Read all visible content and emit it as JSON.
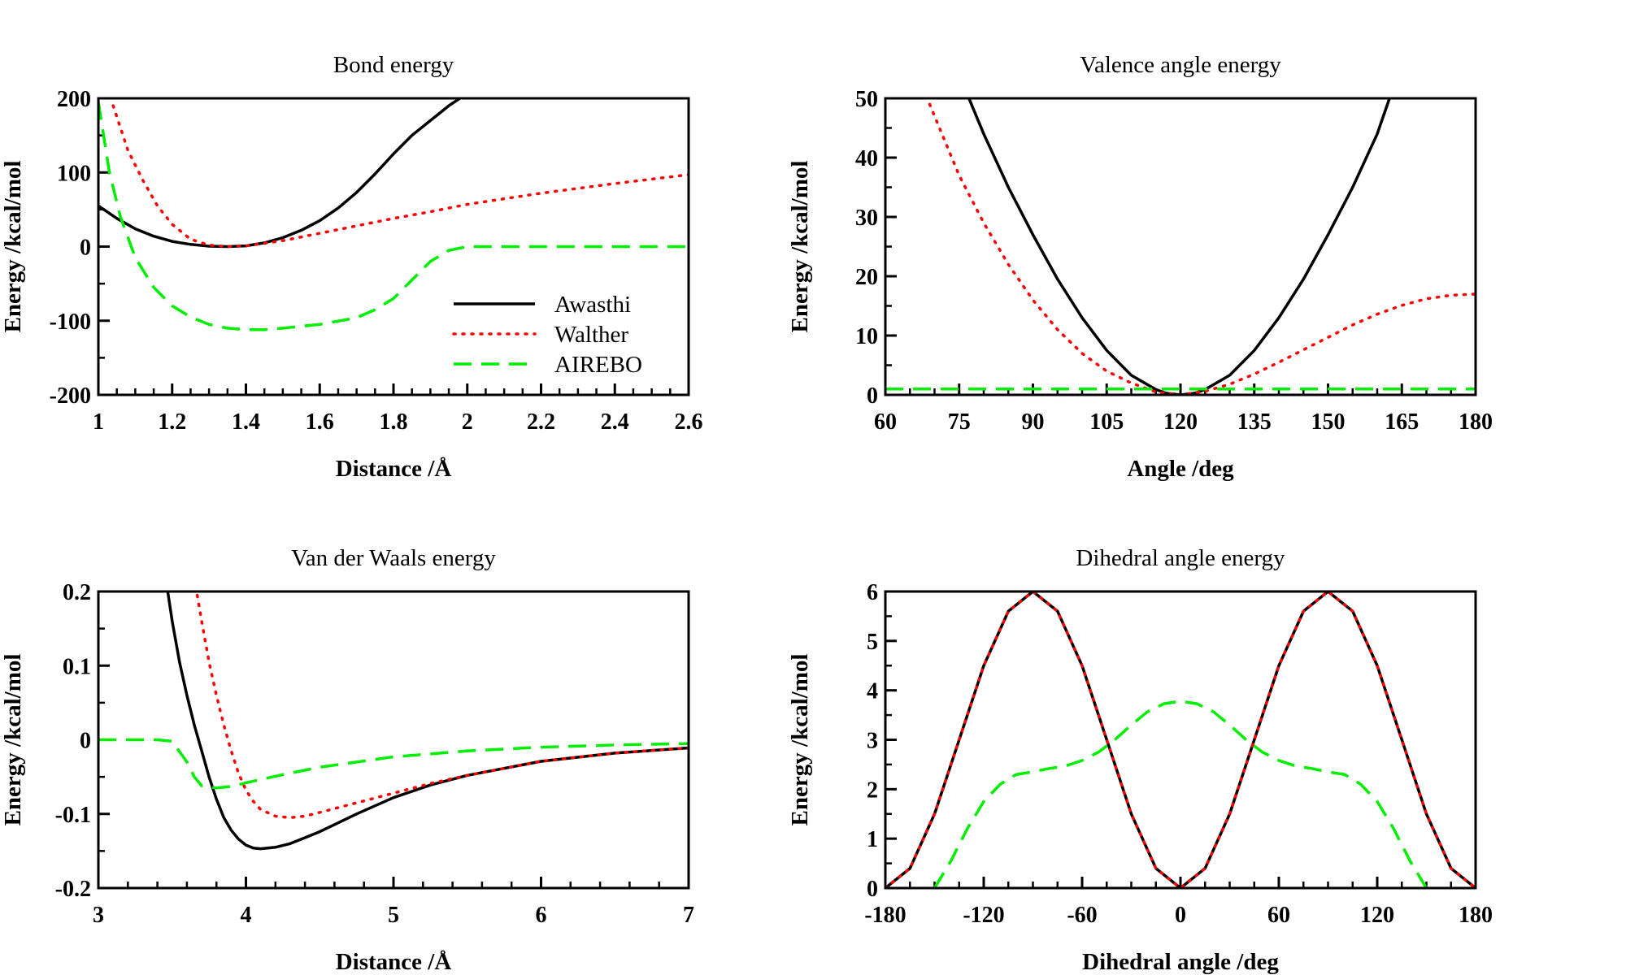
{
  "colors": {
    "awasthi": "#000000",
    "walther": "#ff0000",
    "airebo": "#00ee00",
    "background": "#ffffff"
  },
  "chart_data": [
    {
      "type": "line",
      "title": "Bond energy",
      "xlabel": "Distance /Å",
      "ylabel": "Energy /kcal/mol",
      "xlim": [
        1,
        2.6
      ],
      "ylim": [
        -200,
        200
      ],
      "xticks": [
        1,
        1.2,
        1.4,
        1.6,
        1.8,
        2,
        2.2,
        2.4,
        2.6
      ],
      "xtick_labels": [
        "1",
        "1.2",
        "1.4",
        "1.6",
        "1.8",
        "2",
        "2.2",
        "2.4",
        "2.6"
      ],
      "xminor": 0.05,
      "yticks": [
        -200,
        -100,
        0,
        100,
        200
      ],
      "ytick_labels": [
        "-200",
        "-100",
        "0",
        "100",
        "200"
      ],
      "yminor": 50,
      "grid": false,
      "legend": "lower-right",
      "series": [
        {
          "name": "Awasthi",
          "style": "solid",
          "color": "#000000",
          "x": [
            1.0,
            1.05,
            1.1,
            1.15,
            1.2,
            1.25,
            1.3,
            1.35,
            1.4,
            1.45,
            1.5,
            1.55,
            1.6,
            1.65,
            1.7,
            1.75,
            1.8,
            1.85,
            1.9,
            1.95,
            1.98
          ],
          "y": [
            55,
            38,
            24,
            14,
            7,
            3,
            0.5,
            0,
            1,
            5,
            12,
            22,
            35,
            52,
            73,
            98,
            125,
            150,
            170,
            190,
            200
          ]
        },
        {
          "name": "Walther",
          "style": "dotted",
          "color": "#ff0000",
          "x": [
            1.04,
            1.08,
            1.12,
            1.16,
            1.2,
            1.25,
            1.3,
            1.35,
            1.4,
            1.5,
            1.6,
            1.7,
            1.8,
            1.9,
            2.0,
            2.2,
            2.4,
            2.6
          ],
          "y": [
            190,
            130,
            90,
            55,
            30,
            10,
            2,
            0,
            1,
            8,
            18,
            28,
            38,
            47,
            57,
            72,
            85,
            97
          ]
        },
        {
          "name": "AIREBO",
          "style": "dashed",
          "color": "#00ee00",
          "x": [
            1.0,
            1.03,
            1.06,
            1.1,
            1.15,
            1.2,
            1.25,
            1.3,
            1.35,
            1.4,
            1.45,
            1.5,
            1.6,
            1.7,
            1.75,
            1.8,
            1.85,
            1.9,
            1.95,
            2.0,
            2.2,
            2.4,
            2.6
          ],
          "y": [
            195,
            100,
            40,
            -15,
            -55,
            -80,
            -95,
            -105,
            -110,
            -112,
            -112,
            -110,
            -105,
            -96,
            -85,
            -70,
            -45,
            -20,
            -5,
            0,
            0,
            0,
            0
          ]
        }
      ]
    },
    {
      "type": "line",
      "title": "Valence angle energy",
      "xlabel": "Angle /deg",
      "ylabel": "Energy /kcal/mol",
      "xlim": [
        60,
        180
      ],
      "ylim": [
        0,
        50
      ],
      "xticks": [
        60,
        75,
        90,
        105,
        120,
        135,
        150,
        165,
        180
      ],
      "xtick_labels": [
        "60",
        "75",
        "90",
        "105",
        "120",
        "135",
        "150",
        "165",
        "180"
      ],
      "xminor": 5,
      "yticks": [
        0,
        10,
        20,
        30,
        40,
        50
      ],
      "ytick_labels": [
        "0",
        "10",
        "20",
        "30",
        "40",
        "50"
      ],
      "yminor": 5,
      "grid": false,
      "series": [
        {
          "name": "Awasthi",
          "style": "solid",
          "color": "#000000",
          "x": [
            77,
            80,
            85,
            90,
            95,
            100,
            105,
            110,
            115,
            117,
            120,
            123,
            125,
            130,
            135,
            140,
            145,
            150,
            155,
            160,
            162.5
          ],
          "y": [
            50,
            44,
            35,
            27,
            19.5,
            13,
            7.5,
            3.3,
            0.9,
            0.3,
            0,
            0.3,
            0.9,
            3.3,
            7.5,
            13,
            19.5,
            27,
            35,
            44,
            50
          ]
        },
        {
          "name": "Walther",
          "style": "dotted",
          "color": "#ff0000",
          "x": [
            69,
            72,
            75,
            80,
            85,
            90,
            95,
            100,
            105,
            110,
            115,
            120,
            125,
            130,
            135,
            140,
            145,
            150,
            155,
            160,
            165,
            170,
            175,
            180
          ],
          "y": [
            49,
            43,
            37,
            29,
            22,
            16,
            11,
            7,
            4,
            2,
            0.5,
            0,
            0.6,
            1.8,
            3.5,
            5.5,
            7.6,
            9.7,
            11.8,
            13.6,
            15.1,
            16.2,
            16.8,
            17
          ]
        },
        {
          "name": "AIREBO",
          "style": "dashed",
          "color": "#00ee00",
          "x": [
            60,
            90,
            120,
            150,
            180
          ],
          "y": [
            1,
            1,
            1,
            1,
            1
          ]
        }
      ]
    },
    {
      "type": "line",
      "title": "Van der Waals energy",
      "xlabel": "Distance /Å",
      "ylabel": "Energy /kcal/mol",
      "xlim": [
        3,
        7
      ],
      "ylim": [
        -0.2,
        0.2
      ],
      "xticks": [
        3,
        4,
        5,
        6,
        7
      ],
      "xtick_labels": [
        "3",
        "4",
        "5",
        "6",
        "7"
      ],
      "xminor": 0.2,
      "yticks": [
        -0.2,
        -0.1,
        0,
        0.1,
        0.2
      ],
      "ytick_labels": [
        "-0.2",
        "-0.1",
        "0",
        "0.1",
        "0.2"
      ],
      "yminor": 0.05,
      "grid": false,
      "series": [
        {
          "name": "Awasthi",
          "style": "solid",
          "color": "#000000",
          "x": [
            3.47,
            3.5,
            3.55,
            3.6,
            3.65,
            3.7,
            3.75,
            3.8,
            3.85,
            3.9,
            3.95,
            4.0,
            4.05,
            4.1,
            4.2,
            4.3,
            4.4,
            4.5,
            4.75,
            5.0,
            5.25,
            5.5,
            6.0,
            6.5,
            7.0
          ],
          "y": [
            0.2,
            0.16,
            0.105,
            0.06,
            0.02,
            -0.015,
            -0.05,
            -0.08,
            -0.105,
            -0.122,
            -0.134,
            -0.142,
            -0.146,
            -0.147,
            -0.145,
            -0.14,
            -0.132,
            -0.124,
            -0.1,
            -0.078,
            -0.061,
            -0.048,
            -0.029,
            -0.018,
            -0.011
          ]
        },
        {
          "name": "Walther",
          "style": "dotted",
          "color": "#ff0000",
          "x": [
            3.67,
            3.7,
            3.75,
            3.8,
            3.85,
            3.9,
            3.95,
            4.0,
            4.05,
            4.1,
            4.2,
            4.3,
            4.4,
            4.5,
            4.75,
            5.0,
            5.25,
            5.5,
            6.0,
            6.5,
            7.0
          ],
          "y": [
            0.195,
            0.16,
            0.105,
            0.06,
            0.02,
            -0.015,
            -0.045,
            -0.068,
            -0.083,
            -0.094,
            -0.103,
            -0.105,
            -0.103,
            -0.098,
            -0.085,
            -0.072,
            -0.059,
            -0.048,
            -0.029,
            -0.018,
            -0.011
          ]
        },
        {
          "name": "AIREBO",
          "style": "dashed",
          "color": "#00ee00",
          "x": [
            3.0,
            3.2,
            3.4,
            3.5,
            3.6,
            3.65,
            3.7,
            3.8,
            3.9,
            4.0,
            4.25,
            4.5,
            5.0,
            5.5,
            6.0,
            6.5,
            7.0
          ],
          "y": [
            0,
            0,
            0,
            -0.002,
            -0.03,
            -0.05,
            -0.062,
            -0.065,
            -0.063,
            -0.058,
            -0.047,
            -0.037,
            -0.023,
            -0.015,
            -0.01,
            -0.007,
            -0.005
          ]
        }
      ]
    },
    {
      "type": "line",
      "title": "Dihedral angle energy",
      "xlabel": "Dihedral angle /deg",
      "ylabel": "Energy /kcal/mol",
      "xlim": [
        -180,
        180
      ],
      "ylim": [
        0,
        6
      ],
      "xticks": [
        -180,
        -120,
        -60,
        0,
        60,
        120,
        180
      ],
      "xtick_labels": [
        "-180",
        "-120",
        "-60",
        "0",
        "60",
        "120",
        "180"
      ],
      "xminor": 15,
      "yticks": [
        0,
        1,
        2,
        3,
        4,
        5,
        6
      ],
      "ytick_labels": [
        "0",
        "1",
        "2",
        "3",
        "4",
        "5",
        "6"
      ],
      "yminor": 0.5,
      "grid": false,
      "series": [
        {
          "name": "Awasthi",
          "style": "solid",
          "color": "#000000",
          "x": [
            -180,
            -165,
            -150,
            -135,
            -120,
            -105,
            -90,
            -75,
            -60,
            -45,
            -30,
            -15,
            0,
            15,
            30,
            45,
            60,
            75,
            90,
            105,
            120,
            135,
            150,
            165,
            180
          ],
          "y": [
            0,
            0.4,
            1.5,
            3,
            4.5,
            5.6,
            6,
            5.6,
            4.5,
            3,
            1.5,
            0.4,
            0,
            0.4,
            1.5,
            3,
            4.5,
            5.6,
            6,
            5.6,
            4.5,
            3,
            1.5,
            0.4,
            0
          ]
        },
        {
          "name": "Walther",
          "style": "dotted",
          "color": "#ff0000",
          "x": [
            -180,
            -165,
            -150,
            -135,
            -120,
            -105,
            -90,
            -75,
            -60,
            -45,
            -30,
            -15,
            0,
            15,
            30,
            45,
            60,
            75,
            90,
            105,
            120,
            135,
            150,
            165,
            180
          ],
          "y": [
            0,
            0.4,
            1.5,
            3,
            4.5,
            5.6,
            6,
            5.6,
            4.5,
            3,
            1.5,
            0.4,
            0,
            0.4,
            1.5,
            3,
            4.5,
            5.6,
            6,
            5.6,
            4.5,
            3,
            1.5,
            0.4,
            0
          ]
        },
        {
          "name": "AIREBO",
          "style": "dashed",
          "color": "#00ee00",
          "x": [
            -150,
            -140,
            -130,
            -120,
            -110,
            -100,
            -90,
            -80,
            -70,
            -60,
            -50,
            -40,
            -30,
            -20,
            -10,
            0,
            10,
            20,
            30,
            40,
            50,
            60,
            70,
            80,
            90,
            100,
            110,
            120,
            130,
            140,
            150
          ],
          "y": [
            0,
            0.55,
            1.2,
            1.75,
            2.1,
            2.3,
            2.35,
            2.42,
            2.47,
            2.58,
            2.75,
            3.0,
            3.3,
            3.57,
            3.73,
            3.78,
            3.73,
            3.57,
            3.3,
            3.0,
            2.75,
            2.58,
            2.47,
            2.42,
            2.35,
            2.3,
            2.1,
            1.75,
            1.2,
            0.55,
            0
          ]
        }
      ]
    }
  ]
}
